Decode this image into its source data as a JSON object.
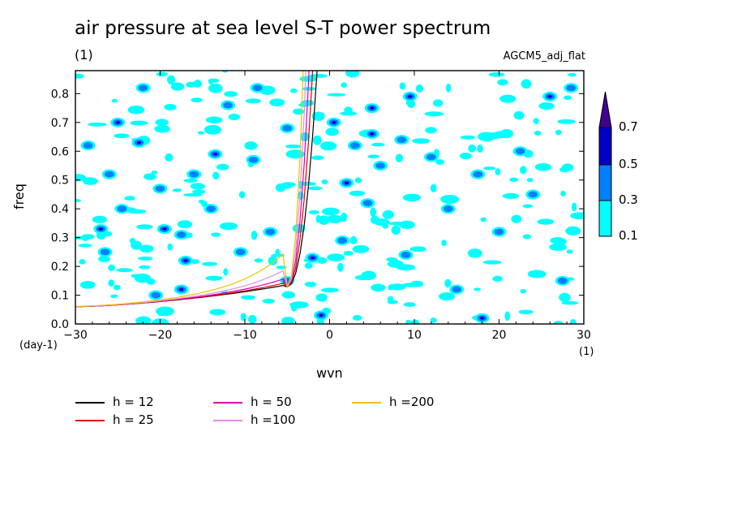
{
  "chart_data": {
    "type": "heatmap",
    "title": "air pressure at sea level S-T power spectrum",
    "subtitle": "(1)",
    "dataset_label": "AGCM5_adj_flat",
    "xlabel": "wvn",
    "ylabel": "freq",
    "x_unit": "(1)",
    "y_unit": "(day-1)",
    "xlim": [
      -30,
      30
    ],
    "ylim": [
      0,
      0.88
    ],
    "x_ticks": [
      -30,
      -20,
      -10,
      0,
      10,
      20,
      30
    ],
    "y_ticks": [
      0.0,
      0.1,
      0.2,
      0.3,
      0.4,
      0.5,
      0.6,
      0.7,
      0.8
    ],
    "y_tick_labels": [
      "0.0",
      "0.1",
      "0.2",
      "0.3",
      "0.4",
      "0.5",
      "0.6",
      "0.7",
      "0.8"
    ],
    "colorbar": {
      "levels": [
        "0.1",
        "0.3",
        "0.5",
        "0.7"
      ],
      "colors": [
        "#00ffff",
        "#0080ff",
        "#0000c8",
        "#400090"
      ]
    },
    "dispersion_curves": [
      {
        "name": "h = 12",
        "h": 12,
        "color": "#000000"
      },
      {
        "name": "h = 25",
        "h": 25,
        "color": "#e00000"
      },
      {
        "name": "h = 50",
        "h": 50,
        "color": "#e000b0"
      },
      {
        "name": "h =100",
        "h": 100,
        "color": "#e090e0"
      },
      {
        "name": "h =200",
        "h": 200,
        "color": "#f0c000"
      }
    ],
    "spectrum_patches": [
      {
        "x": -27.0,
        "y": 0.33,
        "level": 2
      },
      {
        "x": -26.5,
        "y": 0.25,
        "level": 1
      },
      {
        "x": -25.0,
        "y": 0.7,
        "level": 2
      },
      {
        "x": -26.0,
        "y": 0.52,
        "level": 1
      },
      {
        "x": -28.5,
        "y": 0.62,
        "level": 1
      },
      {
        "x": -22.0,
        "y": 0.82,
        "level": 1
      },
      {
        "x": -24.5,
        "y": 0.4,
        "level": 1
      },
      {
        "x": -22.5,
        "y": 0.63,
        "level": 2
      },
      {
        "x": -20.0,
        "y": 0.47,
        "level": 1
      },
      {
        "x": -19.5,
        "y": 0.33,
        "level": 2
      },
      {
        "x": -17.0,
        "y": 0.22,
        "level": 2
      },
      {
        "x": -17.5,
        "y": 0.12,
        "level": 2
      },
      {
        "x": -17.5,
        "y": 0.31,
        "level": 1
      },
      {
        "x": -16.0,
        "y": 0.52,
        "level": 1
      },
      {
        "x": -13.5,
        "y": 0.59,
        "level": 2
      },
      {
        "x": -14.0,
        "y": 0.4,
        "level": 1
      },
      {
        "x": -12.0,
        "y": 0.76,
        "level": 1
      },
      {
        "x": -8.5,
        "y": 0.82,
        "level": 1
      },
      {
        "x": -9.0,
        "y": 0.57,
        "level": 1
      },
      {
        "x": -7.0,
        "y": 0.32,
        "level": 1
      },
      {
        "x": -5.0,
        "y": 0.15,
        "level": 1
      },
      {
        "x": -2.0,
        "y": 0.23,
        "level": 2
      },
      {
        "x": -1.0,
        "y": 0.03,
        "level": 2
      },
      {
        "x": 0.5,
        "y": 0.7,
        "level": 2
      },
      {
        "x": 2.0,
        "y": 0.49,
        "level": 2
      },
      {
        "x": 3.0,
        "y": 0.62,
        "level": 1
      },
      {
        "x": 5.0,
        "y": 0.75,
        "level": 2
      },
      {
        "x": 5.0,
        "y": 0.66,
        "level": 2
      },
      {
        "x": 4.5,
        "y": 0.42,
        "level": 1
      },
      {
        "x": 8.5,
        "y": 0.64,
        "level": 1
      },
      {
        "x": 9.5,
        "y": 0.79,
        "level": 2
      },
      {
        "x": 12.0,
        "y": 0.58,
        "level": 1
      },
      {
        "x": 14.0,
        "y": 0.4,
        "level": 1
      },
      {
        "x": 17.5,
        "y": 0.52,
        "level": 1
      },
      {
        "x": 20.0,
        "y": 0.32,
        "level": 1
      },
      {
        "x": 22.5,
        "y": 0.6,
        "level": 1
      },
      {
        "x": 26.0,
        "y": 0.79,
        "level": 2
      },
      {
        "x": 27.5,
        "y": 0.15,
        "level": 1
      },
      {
        "x": 18.0,
        "y": 0.02,
        "level": 2
      },
      {
        "x": 15.0,
        "y": 0.12,
        "level": 1
      },
      {
        "x": 9.0,
        "y": 0.24,
        "level": 1
      },
      {
        "x": 24.0,
        "y": 0.45,
        "level": 1
      },
      {
        "x": -5.0,
        "y": 0.68,
        "level": 1
      },
      {
        "x": -20.5,
        "y": 0.1,
        "level": 1
      },
      {
        "x": -10.5,
        "y": 0.25,
        "level": 1
      },
      {
        "x": 1.5,
        "y": 0.29,
        "level": 1
      },
      {
        "x": 28.5,
        "y": 0.82,
        "level": 1
      },
      {
        "x": 6.0,
        "y": 0.55,
        "level": 1
      }
    ]
  }
}
